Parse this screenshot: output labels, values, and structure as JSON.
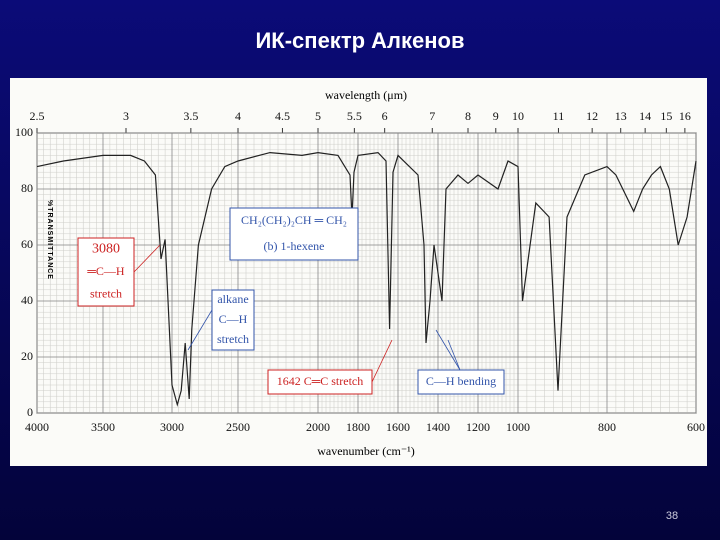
{
  "slide": {
    "title": "ИК-спектр Алкенов",
    "page_number": "38"
  },
  "chart_data": {
    "type": "line",
    "x_label": "wavenumber (cm⁻¹)",
    "x2_label": "wavelength (μm)",
    "y_label": "%TRANSMITTANCE",
    "xlim": [
      4000,
      600
    ],
    "xticks": [
      4000,
      3500,
      3000,
      2500,
      2000,
      1800,
      1600,
      1400,
      1200,
      1000,
      800,
      600
    ],
    "x2ticks": [
      2.5,
      3,
      3.5,
      4,
      4.5,
      5,
      5.5,
      6,
      7,
      8,
      9,
      10,
      11,
      12,
      13,
      14,
      15,
      16
    ],
    "ylim": [
      0,
      100
    ],
    "yticks": [
      0,
      20,
      40,
      60,
      80,
      100
    ],
    "grid": true,
    "series": [
      {
        "name": "1-hexene",
        "color": "#222222",
        "x": [
          4000,
          3800,
          3500,
          3300,
          3200,
          3120,
          3080,
          3050,
          3000,
          2960,
          2930,
          2900,
          2870,
          2850,
          2800,
          2700,
          2600,
          2500,
          2300,
          2100,
          2000,
          1900,
          1840,
          1830,
          1820,
          1800,
          1700,
          1660,
          1642,
          1625,
          1600,
          1500,
          1470,
          1460,
          1440,
          1420,
          1380,
          1360,
          1300,
          1250,
          1200,
          1100,
          1050,
          1000,
          990,
          960,
          930,
          910,
          890,
          850,
          800,
          780,
          740,
          720,
          700,
          680,
          660,
          640,
          620,
          600
        ],
        "values": [
          88,
          90,
          92,
          92,
          90,
          85,
          55,
          62,
          10,
          3,
          8,
          25,
          5,
          30,
          60,
          80,
          88,
          90,
          93,
          92,
          93,
          92,
          85,
          70,
          86,
          92,
          93,
          90,
          30,
          86,
          92,
          85,
          60,
          25,
          40,
          60,
          40,
          80,
          85,
          82,
          85,
          80,
          90,
          88,
          40,
          75,
          70,
          8,
          70,
          85,
          88,
          85,
          72,
          80,
          85,
          88,
          80,
          60,
          70,
          90
        ]
      }
    ],
    "annotations": [
      {
        "lines": [
          "3080",
          "═C—H",
          "stretch"
        ],
        "color": "#cc2222"
      },
      {
        "lines": [
          "alkane",
          "C—H",
          "stretch"
        ],
        "color": "#3355aa"
      },
      {
        "lines": [
          "CH₂(CH₂)₂CH ═ CH₂",
          "(b) 1-hexene"
        ],
        "color": "#3355aa"
      },
      {
        "lines": [
          "1642 C═C stretch"
        ],
        "color": "#cc2222"
      },
      {
        "lines": [
          "C—H bending"
        ],
        "color": "#3355aa"
      }
    ]
  }
}
